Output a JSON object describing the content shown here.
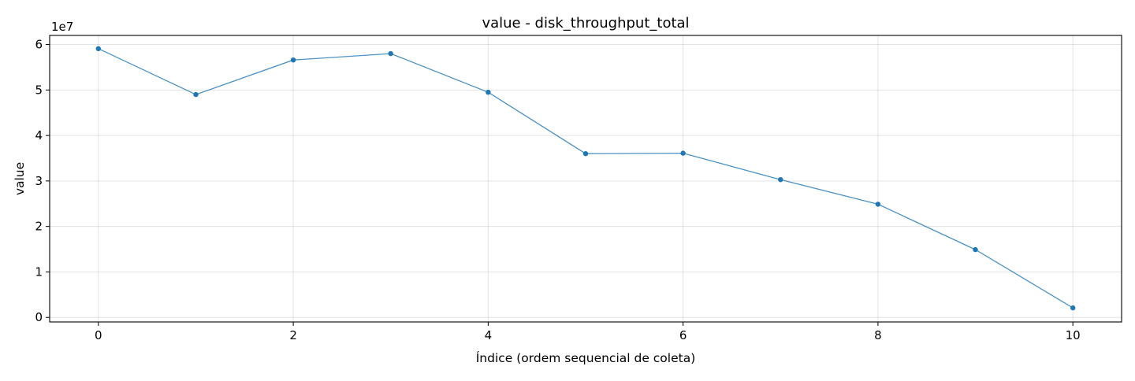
{
  "chart_data": {
    "type": "line",
    "title": "value - disk_throughput_total",
    "xlabel": "Índice (ordem sequencial de coleta)",
    "ylabel": "value",
    "y_multiplier_label": "1e7",
    "x": [
      0,
      1,
      2,
      3,
      4,
      5,
      6,
      7,
      8,
      9,
      10
    ],
    "series": [
      {
        "values": [
          59100000,
          49000000,
          56600000,
          58000000,
          49500000,
          36000000,
          36100000,
          30300000,
          24900000,
          14900000,
          2100000
        ]
      }
    ],
    "xlim": [
      -0.5,
      10.5
    ],
    "ylim": [
      -1000000,
      62000000
    ],
    "x_ticks": [
      0,
      2,
      4,
      6,
      8,
      10
    ],
    "x_tick_labels": [
      "0",
      "2",
      "4",
      "6",
      "8",
      "10"
    ],
    "y_ticks": [
      0,
      10000000,
      20000000,
      30000000,
      40000000,
      50000000,
      60000000
    ],
    "y_tick_labels": [
      "0",
      "1",
      "2",
      "3",
      "4",
      "5",
      "6"
    ],
    "grid": true,
    "line_color": "#1f77b4"
  }
}
